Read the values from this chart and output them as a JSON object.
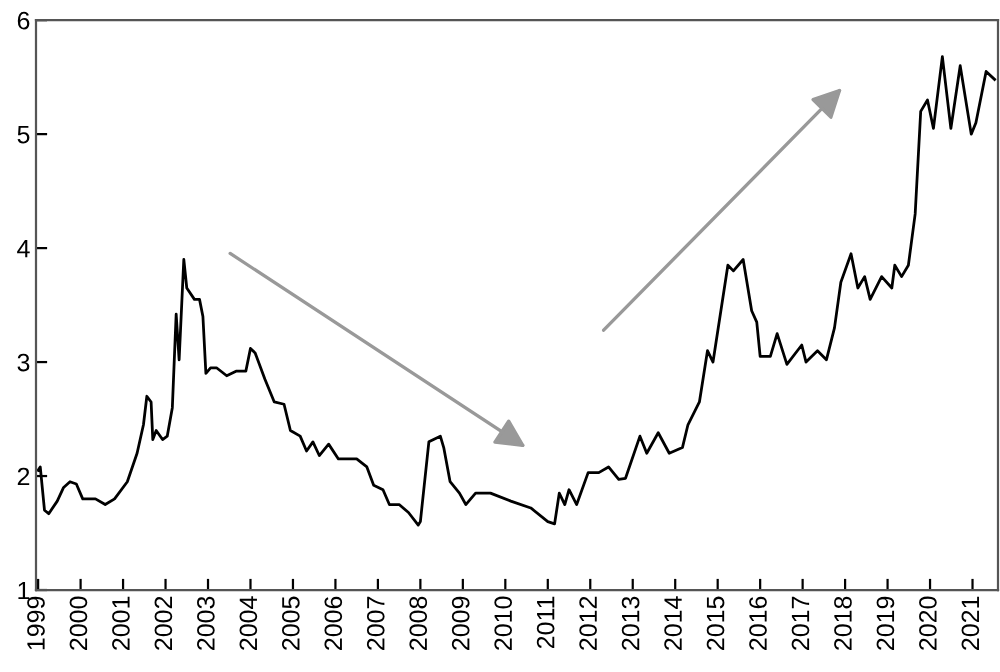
{
  "chart_data": {
    "type": "line",
    "x": [
      1999.0,
      1999.05,
      1999.15,
      1999.25,
      1999.45,
      1999.6,
      1999.75,
      1999.9,
      2000.05,
      2000.35,
      2000.58,
      2000.8,
      2001.1,
      2001.33,
      2001.48,
      2001.56,
      2001.66,
      2001.7,
      2001.78,
      2001.93,
      2002.04,
      2002.16,
      2002.25,
      2002.32,
      2002.43,
      2002.5,
      2002.68,
      2002.8,
      2002.88,
      2002.95,
      2003.06,
      2003.2,
      2003.44,
      2003.66,
      2003.89,
      2004.0,
      2004.11,
      2004.34,
      2004.56,
      2004.79,
      2004.94,
      2005.17,
      2005.32,
      2005.47,
      2005.62,
      2005.84,
      2006.07,
      2006.5,
      2006.74,
      2006.9,
      2007.12,
      2007.27,
      2007.5,
      2007.72,
      2007.95,
      2008.0,
      2008.2,
      2008.47,
      2008.55,
      2008.7,
      2008.92,
      2009.07,
      2009.3,
      2009.65,
      2010.13,
      2010.6,
      2011.0,
      2011.16,
      2011.27,
      2011.4,
      2011.5,
      2011.68,
      2011.95,
      2012.2,
      2012.43,
      2012.67,
      2012.83,
      2013.17,
      2013.33,
      2013.6,
      2013.86,
      2014.17,
      2014.3,
      2014.57,
      2014.76,
      2014.89,
      2015.24,
      2015.37,
      2015.6,
      2015.8,
      2015.92,
      2016.0,
      2016.24,
      2016.4,
      2016.63,
      2016.98,
      2017.08,
      2017.35,
      2017.56,
      2017.75,
      2017.9,
      2018.14,
      2018.3,
      2018.46,
      2018.59,
      2018.86,
      2019.1,
      2019.17,
      2019.33,
      2019.49,
      2019.65,
      2019.78,
      2019.94,
      2020.08,
      2020.29,
      2020.49,
      2020.71,
      2020.97,
      2021.08,
      2021.32,
      2021.52
    ],
    "series": [
      {
        "color": "#000000",
        "values": [
          2.05,
          2.08,
          1.7,
          1.67,
          1.78,
          1.9,
          1.95,
          1.93,
          1.8,
          1.8,
          1.75,
          1.8,
          1.95,
          2.2,
          2.45,
          2.7,
          2.65,
          2.32,
          2.4,
          2.32,
          2.35,
          2.6,
          3.42,
          3.02,
          3.9,
          3.65,
          3.55,
          3.55,
          3.4,
          2.9,
          2.95,
          2.95,
          2.88,
          2.92,
          2.92,
          3.12,
          3.08,
          2.85,
          2.65,
          2.63,
          2.4,
          2.35,
          2.22,
          2.3,
          2.18,
          2.28,
          2.15,
          2.15,
          2.08,
          1.92,
          1.88,
          1.75,
          1.75,
          1.68,
          1.57,
          1.6,
          2.3,
          2.35,
          2.25,
          1.95,
          1.85,
          1.75,
          1.85,
          1.85,
          1.78,
          1.72,
          1.6,
          1.58,
          1.85,
          1.75,
          1.88,
          1.75,
          2.03,
          2.03,
          2.08,
          1.97,
          1.98,
          2.35,
          2.2,
          2.38,
          2.2,
          2.25,
          2.45,
          2.65,
          3.1,
          3.0,
          3.85,
          3.8,
          3.9,
          3.45,
          3.35,
          3.05,
          3.05,
          3.25,
          2.98,
          3.15,
          3.0,
          3.1,
          3.02,
          3.3,
          3.7,
          3.95,
          3.65,
          3.75,
          3.55,
          3.75,
          3.65,
          3.85,
          3.75,
          3.85,
          4.3,
          5.2,
          5.3,
          5.05,
          5.68,
          5.05,
          5.6,
          5.0,
          5.1,
          5.55,
          5.48
        ]
      }
    ],
    "xlim": [
      1998.95,
      2021.6
    ],
    "xticks": [
      {
        "value": 1999,
        "label": "1999"
      },
      {
        "value": 2000,
        "label": "2000"
      },
      {
        "value": 2001,
        "label": "2001"
      },
      {
        "value": 2002,
        "label": "2002"
      },
      {
        "value": 2003,
        "label": "2003"
      },
      {
        "value": 2004,
        "label": "2004"
      },
      {
        "value": 2005,
        "label": "2005"
      },
      {
        "value": 2006,
        "label": "2006"
      },
      {
        "value": 2007,
        "label": "2007"
      },
      {
        "value": 2008,
        "label": "2008"
      },
      {
        "value": 2009,
        "label": "2009"
      },
      {
        "value": 2010,
        "label": "2010"
      },
      {
        "value": 2011,
        "label": "2011"
      },
      {
        "value": 2012,
        "label": "2012"
      },
      {
        "value": 2013,
        "label": "2013"
      },
      {
        "value": 2014,
        "label": "2014"
      },
      {
        "value": 2015,
        "label": "2015"
      },
      {
        "value": 2016,
        "label": "2016"
      },
      {
        "value": 2017,
        "label": "2017"
      },
      {
        "value": 2018,
        "label": "2018"
      },
      {
        "value": 2019,
        "label": "2019"
      },
      {
        "value": 2020,
        "label": "2020"
      },
      {
        "value": 2021,
        "label": "2021"
      }
    ],
    "ylim": [
      1,
      6
    ],
    "yticks": [
      1,
      2,
      3,
      4,
      5,
      6
    ],
    "grid": false,
    "legend": false
  }
}
